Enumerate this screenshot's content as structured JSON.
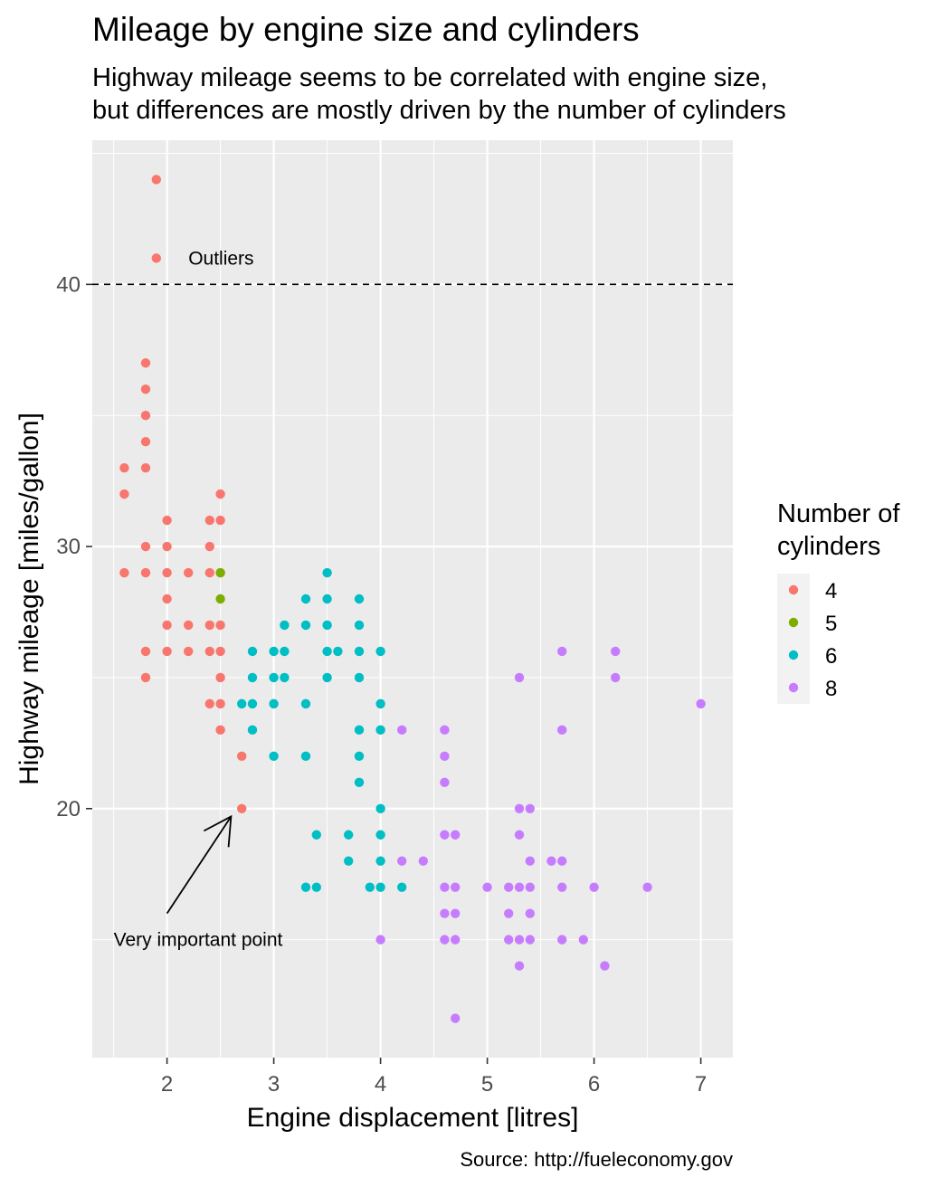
{
  "chart_data": {
    "type": "scatter",
    "title": "Mileage by engine size and cylinders",
    "subtitle": [
      "Highway mileage seems to be correlated with engine size,",
      "but differences are mostly driven by the number of cylinders"
    ],
    "caption": "Source: http://fueleconomy.gov",
    "xlabel": "Engine displacement [litres]",
    "ylabel": "Highway mileage [miles/gallon]",
    "xlim": [
      1.3,
      7.3
    ],
    "ylim": [
      10.5,
      45.5
    ],
    "x_ticks": [
      2,
      3,
      4,
      5,
      6,
      7
    ],
    "x_tick_labels": [
      "2",
      "3",
      "4",
      "5",
      "6",
      "7"
    ],
    "y_ticks": [
      20,
      30,
      40
    ],
    "y_tick_labels": [
      "20",
      "30",
      "40"
    ],
    "grid": true,
    "legend": {
      "title": [
        "Number of",
        "cylinders"
      ],
      "placement": "right",
      "entries": [
        {
          "label": "4",
          "color": "#F8766D"
        },
        {
          "label": "5",
          "color": "#7CAE00"
        },
        {
          "label": "6",
          "color": "#00BFC4"
        },
        {
          "label": "8",
          "color": "#C77CFF"
        }
      ]
    },
    "reference_line": {
      "y": 40,
      "style": "dashed",
      "color": "#000000"
    },
    "annotations": [
      {
        "text": "Outliers",
        "x": 2.2,
        "y": 41
      },
      {
        "text": "Very important point",
        "x": 1.5,
        "y": 15,
        "arrow_from": [
          2.0,
          16
        ],
        "arrow_to": [
          2.6,
          19.7
        ]
      }
    ],
    "series": [
      {
        "name": "4",
        "color": "#F8766D",
        "points": [
          [
            1.9,
            44
          ],
          [
            1.9,
            41
          ],
          [
            1.8,
            37
          ],
          [
            1.8,
            36
          ],
          [
            1.8,
            35
          ],
          [
            1.8,
            34
          ],
          [
            1.8,
            33
          ],
          [
            1.8,
            30
          ],
          [
            1.8,
            29
          ],
          [
            1.8,
            26
          ],
          [
            1.8,
            25
          ],
          [
            1.6,
            33
          ],
          [
            1.6,
            32
          ],
          [
            1.6,
            29
          ],
          [
            2.0,
            31
          ],
          [
            2.0,
            30
          ],
          [
            2.0,
            29
          ],
          [
            2.0,
            28
          ],
          [
            2.0,
            27
          ],
          [
            2.0,
            26
          ],
          [
            2.2,
            29
          ],
          [
            2.2,
            27
          ],
          [
            2.2,
            26
          ],
          [
            2.4,
            31
          ],
          [
            2.4,
            30
          ],
          [
            2.4,
            29
          ],
          [
            2.4,
            27
          ],
          [
            2.4,
            26
          ],
          [
            2.4,
            24
          ],
          [
            2.5,
            32
          ],
          [
            2.5,
            31
          ],
          [
            2.5,
            29
          ],
          [
            2.5,
            27
          ],
          [
            2.5,
            26
          ],
          [
            2.5,
            25
          ],
          [
            2.5,
            24
          ],
          [
            2.5,
            23
          ],
          [
            2.7,
            22
          ],
          [
            2.7,
            20
          ]
        ]
      },
      {
        "name": "5",
        "color": "#7CAE00",
        "points": [
          [
            2.5,
            29
          ],
          [
            2.5,
            28
          ]
        ]
      },
      {
        "name": "6",
        "color": "#00BFC4",
        "points": [
          [
            2.7,
            24
          ],
          [
            2.8,
            26
          ],
          [
            2.8,
            25
          ],
          [
            2.8,
            24
          ],
          [
            2.8,
            23
          ],
          [
            3.0,
            26
          ],
          [
            3.0,
            25
          ],
          [
            3.0,
            24
          ],
          [
            3.0,
            22
          ],
          [
            3.1,
            27
          ],
          [
            3.1,
            26
          ],
          [
            3.1,
            25
          ],
          [
            3.3,
            28
          ],
          [
            3.3,
            27
          ],
          [
            3.3,
            24
          ],
          [
            3.3,
            22
          ],
          [
            3.3,
            17
          ],
          [
            3.4,
            19
          ],
          [
            3.4,
            17
          ],
          [
            3.5,
            29
          ],
          [
            3.5,
            28
          ],
          [
            3.5,
            27
          ],
          [
            3.5,
            26
          ],
          [
            3.5,
            25
          ],
          [
            3.6,
            26
          ],
          [
            3.7,
            19
          ],
          [
            3.7,
            18
          ],
          [
            3.8,
            28
          ],
          [
            3.8,
            27
          ],
          [
            3.8,
            26
          ],
          [
            3.8,
            25
          ],
          [
            3.8,
            23
          ],
          [
            3.8,
            22
          ],
          [
            3.8,
            21
          ],
          [
            3.9,
            17
          ],
          [
            4.0,
            26
          ],
          [
            4.0,
            24
          ],
          [
            4.0,
            23
          ],
          [
            4.0,
            20
          ],
          [
            4.0,
            19
          ],
          [
            4.0,
            18
          ],
          [
            4.0,
            17
          ],
          [
            4.2,
            17
          ]
        ]
      },
      {
        "name": "8",
        "color": "#C77CFF",
        "points": [
          [
            4.0,
            15
          ],
          [
            4.2,
            23
          ],
          [
            4.2,
            18
          ],
          [
            4.4,
            18
          ],
          [
            4.6,
            23
          ],
          [
            4.6,
            22
          ],
          [
            4.6,
            21
          ],
          [
            4.6,
            19
          ],
          [
            4.6,
            17
          ],
          [
            4.6,
            16
          ],
          [
            4.6,
            15
          ],
          [
            4.7,
            19
          ],
          [
            4.7,
            17
          ],
          [
            4.7,
            16
          ],
          [
            4.7,
            15
          ],
          [
            4.7,
            12
          ],
          [
            5.0,
            17
          ],
          [
            5.2,
            17
          ],
          [
            5.2,
            16
          ],
          [
            5.2,
            15
          ],
          [
            5.3,
            25
          ],
          [
            5.3,
            20
          ],
          [
            5.3,
            19
          ],
          [
            5.3,
            17
          ],
          [
            5.3,
            15
          ],
          [
            5.3,
            14
          ],
          [
            5.4,
            20
          ],
          [
            5.4,
            18
          ],
          [
            5.4,
            17
          ],
          [
            5.4,
            16
          ],
          [
            5.4,
            15
          ],
          [
            5.6,
            18
          ],
          [
            5.7,
            26
          ],
          [
            5.7,
            23
          ],
          [
            5.7,
            18
          ],
          [
            5.7,
            17
          ],
          [
            5.7,
            15
          ],
          [
            5.9,
            15
          ],
          [
            6.0,
            17
          ],
          [
            6.1,
            14
          ],
          [
            6.2,
            26
          ],
          [
            6.2,
            25
          ],
          [
            6.5,
            17
          ],
          [
            7.0,
            24
          ]
        ]
      }
    ]
  }
}
